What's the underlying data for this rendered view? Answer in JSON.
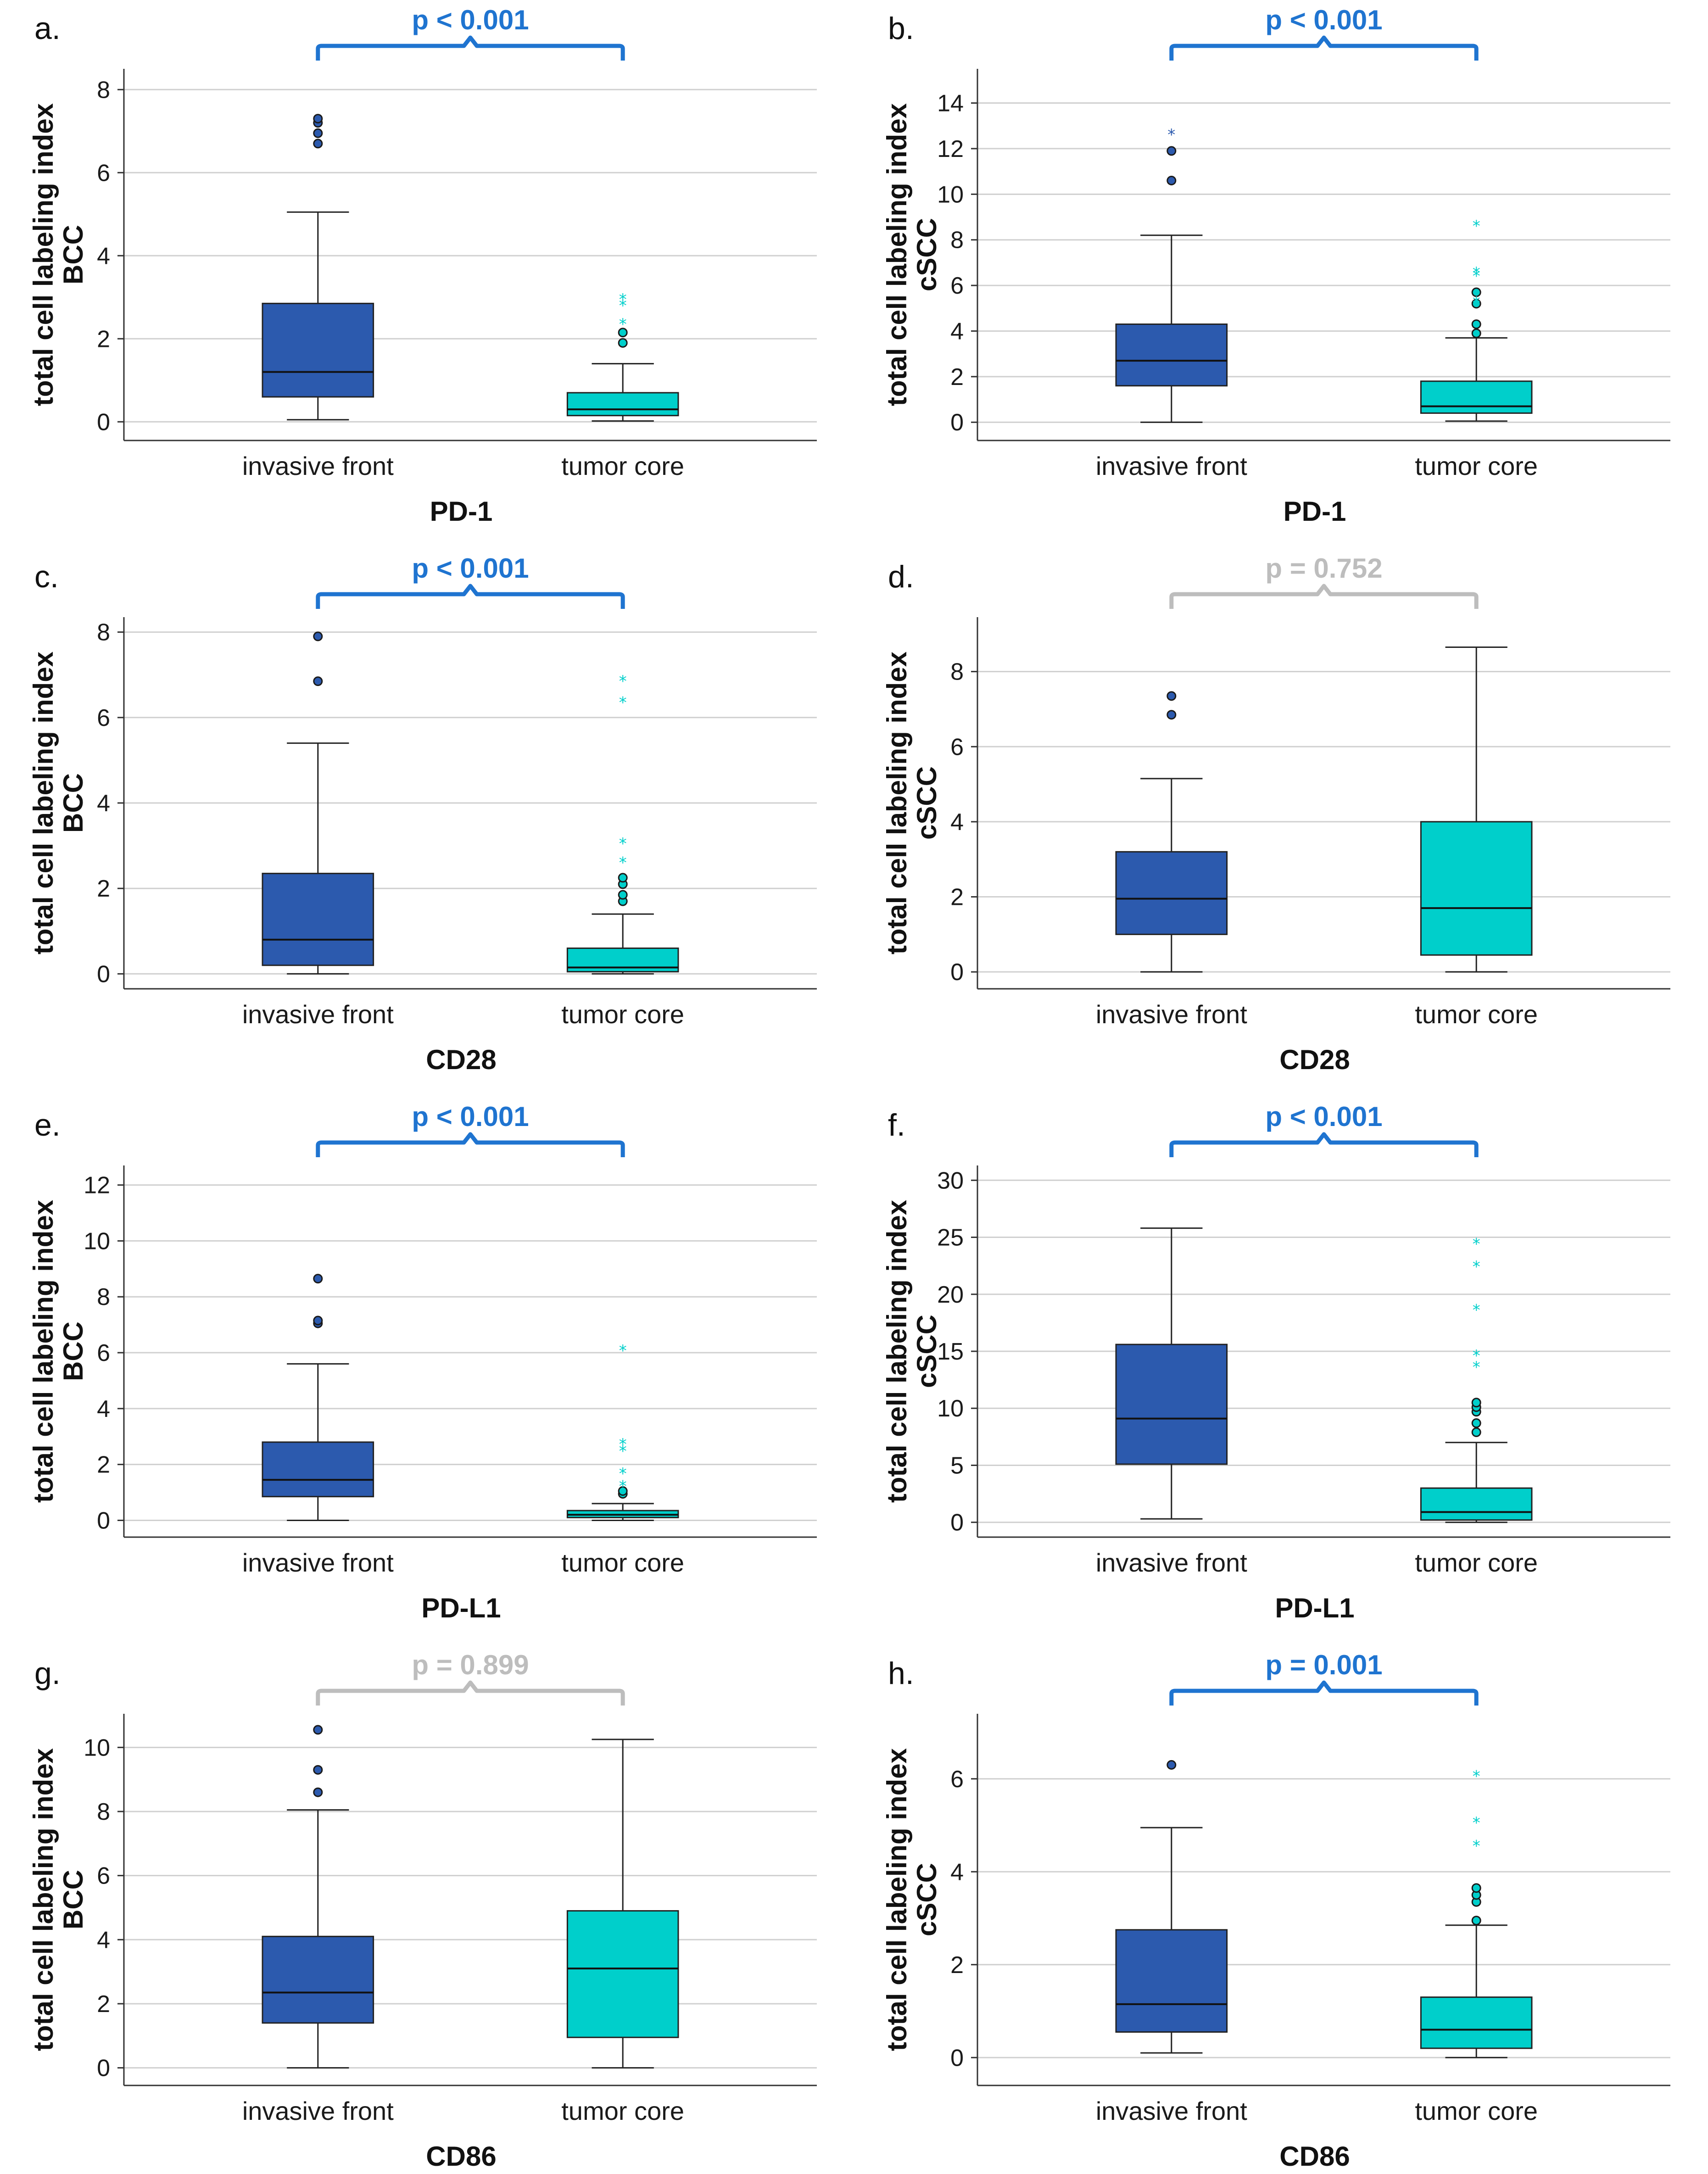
{
  "figure": {
    "colors": {
      "invasive_front": "#2C5AAE",
      "tumor_core": "#00CFCB",
      "sig_bracket": "#1F74D0",
      "ns_bracket": "#BDBDBD",
      "grid": "#D0D0D0",
      "axis": "#333333"
    }
  },
  "chart_data": [
    {
      "panel": "a.",
      "type": "box",
      "title": "",
      "xlabel": "PD-1",
      "ylabel_line1": "total cell labeling index",
      "ylabel_line2": "BCC",
      "categories": [
        "invasive front",
        "tumor core"
      ],
      "ylim": [
        -0.45,
        8.5
      ],
      "yticks": [
        0,
        2,
        4,
        6,
        8
      ],
      "yticklabels": [
        "0",
        "2",
        "4",
        "6",
        "8"
      ],
      "p_value": "p < 0.001",
      "significant": true,
      "series": [
        {
          "name": "invasive front",
          "min": 0.05,
          "q1": 0.6,
          "median": 1.2,
          "q3": 2.85,
          "max": 5.05,
          "outliers": [
            6.7,
            6.95,
            7.2,
            7.3
          ],
          "extremes": []
        },
        {
          "name": "tumor core",
          "min": 0.02,
          "q1": 0.15,
          "median": 0.3,
          "q3": 0.7,
          "max": 1.4,
          "outliers": [
            1.9,
            2.15
          ],
          "extremes": [
            2.4,
            2.85,
            3.0
          ]
        }
      ]
    },
    {
      "panel": "b.",
      "type": "box",
      "title": "",
      "xlabel": "PD-1",
      "ylabel_line1": "total cell labeling index",
      "ylabel_line2": "cSCC",
      "categories": [
        "invasive front",
        "tumor core"
      ],
      "ylim": [
        -0.8,
        15.5
      ],
      "yticks": [
        0,
        2,
        4,
        6,
        8,
        10,
        12,
        14
      ],
      "yticklabels": [
        "0",
        "2",
        "4",
        "6",
        "8",
        "10",
        "12",
        "14"
      ],
      "p_value": "p < 0.001",
      "significant": true,
      "series": [
        {
          "name": "invasive front",
          "min": 0.0,
          "q1": 1.6,
          "median": 2.7,
          "q3": 4.3,
          "max": 8.2,
          "outliers": [
            10.6,
            11.9
          ],
          "extremes": [
            12.7
          ]
        },
        {
          "name": "tumor core",
          "min": 0.05,
          "q1": 0.4,
          "median": 0.7,
          "q3": 1.8,
          "max": 3.7,
          "outliers": [
            3.9,
            4.3,
            5.2,
            5.7
          ],
          "extremes": [
            5.35,
            6.5,
            6.65,
            8.7
          ]
        }
      ]
    },
    {
      "panel": "c.",
      "type": "box",
      "title": "",
      "xlabel": "CD28",
      "ylabel_line1": "total cell labeling index",
      "ylabel_line2": "BCC",
      "categories": [
        "invasive front",
        "tumor core"
      ],
      "ylim": [
        -0.35,
        8.35
      ],
      "yticks": [
        0,
        2,
        4,
        6,
        8
      ],
      "yticklabels": [
        "0",
        "2",
        "4",
        "6",
        "8"
      ],
      "p_value": "p < 0.001",
      "significant": true,
      "series": [
        {
          "name": "invasive front",
          "min": 0.0,
          "q1": 0.2,
          "median": 0.8,
          "q3": 2.35,
          "max": 5.4,
          "outliers": [
            6.85,
            7.9
          ],
          "extremes": []
        },
        {
          "name": "tumor core",
          "min": 0.0,
          "q1": 0.05,
          "median": 0.15,
          "q3": 0.6,
          "max": 1.4,
          "outliers": [
            1.7,
            1.85,
            2.1,
            2.25
          ],
          "extremes": [
            2.65,
            3.1,
            6.4,
            6.9
          ]
        }
      ]
    },
    {
      "panel": "d.",
      "type": "box",
      "title": "",
      "xlabel": "CD28",
      "ylabel_line1": "total cell labeling index",
      "ylabel_line2": "cSCC",
      "categories": [
        "invasive front",
        "tumor core"
      ],
      "ylim": [
        -0.45,
        9.45
      ],
      "yticks": [
        0,
        2,
        4,
        6,
        8
      ],
      "yticklabels": [
        "0",
        "2",
        "4",
        "6",
        "8"
      ],
      "p_value": "p = 0.752",
      "significant": false,
      "series": [
        {
          "name": "invasive front",
          "min": 0.0,
          "q1": 1.0,
          "median": 1.95,
          "q3": 3.2,
          "max": 5.15,
          "outliers": [
            6.85,
            7.35
          ],
          "extremes": []
        },
        {
          "name": "tumor core",
          "min": 0.0,
          "q1": 0.45,
          "median": 1.7,
          "q3": 4.0,
          "max": 8.65,
          "outliers": [],
          "extremes": []
        }
      ]
    },
    {
      "panel": "e.",
      "type": "box",
      "title": "",
      "xlabel": "PD-L1",
      "ylabel_line1": "total cell labeling index",
      "ylabel_line2": "BCC",
      "categories": [
        "invasive front",
        "tumor core"
      ],
      "ylim": [
        -0.6,
        12.7
      ],
      "yticks": [
        0,
        2,
        4,
        6,
        8,
        10,
        12
      ],
      "yticklabels": [
        "0",
        "2",
        "4",
        "6",
        "8",
        "10",
        "12"
      ],
      "p_value": "p < 0.001",
      "significant": true,
      "series": [
        {
          "name": "invasive front",
          "min": 0.0,
          "q1": 0.85,
          "median": 1.45,
          "q3": 2.8,
          "max": 5.6,
          "outliers": [
            7.05,
            7.15,
            8.65
          ],
          "extremes": []
        },
        {
          "name": "tumor core",
          "min": 0.0,
          "q1": 0.1,
          "median": 0.2,
          "q3": 0.35,
          "max": 0.6,
          "outliers": [
            0.95,
            1.05
          ],
          "extremes": [
            1.3,
            1.75,
            2.55,
            2.8,
            6.15
          ]
        }
      ]
    },
    {
      "panel": "f.",
      "type": "box",
      "title": "",
      "xlabel": "PD-L1",
      "ylabel_line1": "total cell labeling index",
      "ylabel_line2": "cSCC",
      "categories": [
        "invasive front",
        "tumor core"
      ],
      "ylim": [
        -1.3,
        31.3
      ],
      "yticks": [
        0,
        5,
        10,
        15,
        20,
        25,
        30
      ],
      "yticklabels": [
        "0",
        "5",
        "10",
        "15",
        "20",
        "25",
        "30"
      ],
      "p_value": "p < 0.001",
      "significant": true,
      "series": [
        {
          "name": "invasive front",
          "min": 0.3,
          "q1": 5.1,
          "median": 9.1,
          "q3": 15.6,
          "max": 25.8,
          "outliers": [],
          "extremes": []
        },
        {
          "name": "tumor core",
          "min": 0.0,
          "q1": 0.2,
          "median": 0.9,
          "q3": 3.0,
          "max": 7.0,
          "outliers": [
            7.9,
            8.7,
            9.7,
            10.1,
            10.5
          ],
          "extremes": [
            13.8,
            14.8,
            18.8,
            22.6,
            24.6
          ]
        }
      ]
    },
    {
      "panel": "g.",
      "type": "box",
      "title": "",
      "xlabel": "CD86",
      "ylabel_line1": "total cell labeling index",
      "ylabel_line2": "BCC",
      "categories": [
        "invasive front",
        "tumor core"
      ],
      "ylim": [
        -0.55,
        11.05
      ],
      "yticks": [
        0,
        2,
        4,
        6,
        8,
        10
      ],
      "yticklabels": [
        "0",
        "2",
        "4",
        "6",
        "8",
        "10"
      ],
      "p_value": "p = 0.899",
      "significant": false,
      "series": [
        {
          "name": "invasive front",
          "min": 0.0,
          "q1": 1.4,
          "median": 2.35,
          "q3": 4.1,
          "max": 8.05,
          "outliers": [
            8.6,
            9.3,
            10.55
          ],
          "extremes": []
        },
        {
          "name": "tumor core",
          "min": 0.0,
          "q1": 0.95,
          "median": 3.1,
          "q3": 4.9,
          "max": 10.25,
          "outliers": [],
          "extremes": []
        }
      ]
    },
    {
      "panel": "h.",
      "type": "box",
      "title": "",
      "xlabel": "CD86",
      "ylabel_line1": "total cell labeling index",
      "ylabel_line2": "cSCC",
      "categories": [
        "invasive front",
        "tumor core"
      ],
      "ylim": [
        -0.6,
        7.4
      ],
      "yticks": [
        0,
        2,
        4,
        6
      ],
      "yticklabels": [
        "0",
        "2",
        "4",
        "6"
      ],
      "p_value": "p = 0.001",
      "significant": true,
      "series": [
        {
          "name": "invasive front",
          "min": 0.1,
          "q1": 0.55,
          "median": 1.15,
          "q3": 2.75,
          "max": 4.95,
          "outliers": [
            6.3
          ],
          "extremes": []
        },
        {
          "name": "tumor core",
          "min": 0.0,
          "q1": 0.2,
          "median": 0.6,
          "q3": 1.3,
          "max": 2.85,
          "outliers": [
            2.95,
            3.35,
            3.5,
            3.65
          ],
          "extremes": [
            4.6,
            5.1,
            6.1
          ]
        }
      ]
    }
  ]
}
